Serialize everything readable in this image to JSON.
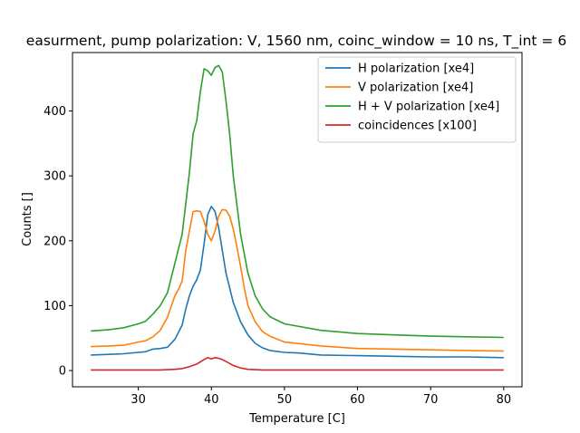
{
  "chart_data": {
    "type": "line",
    "title": "easurment, pump polarization: V, 1560 nm, coinc_window = 10 ns, T_int = 6",
    "xlabel": "Temperature [C]",
    "ylabel": "Counts []",
    "xlim": [
      21,
      82.5
    ],
    "ylim": [
      -25,
      490
    ],
    "xticks": [
      30,
      40,
      50,
      60,
      70,
      80
    ],
    "yticks": [
      0,
      100,
      200,
      300,
      400
    ],
    "grid": false,
    "legend_position": "top-right",
    "series": [
      {
        "name": "H polarization [xe4]",
        "color": "#1f77b4",
        "x": [
          23.5,
          26,
          28,
          30,
          31,
          32,
          33,
          34,
          35,
          36,
          36.5,
          37,
          37.5,
          38,
          38.5,
          39,
          39.5,
          40,
          40.5,
          41,
          41.5,
          42,
          43,
          44,
          45,
          46,
          47,
          48,
          50,
          52,
          55,
          60,
          65,
          70,
          75,
          80
        ],
        "y": [
          24,
          25,
          26,
          28,
          29,
          33,
          34,
          36,
          48,
          70,
          95,
          115,
          130,
          140,
          155,
          195,
          240,
          253,
          245,
          220,
          185,
          150,
          105,
          75,
          55,
          42,
          35,
          31,
          28,
          27,
          24,
          23,
          22,
          21,
          21,
          20
        ]
      },
      {
        "name": "V polarization [xe4]",
        "color": "#ff7f0e",
        "x": [
          23.5,
          26,
          28,
          30,
          31,
          32,
          33,
          34,
          35,
          35.5,
          36,
          36.5,
          37,
          37.5,
          38,
          38.5,
          39,
          39.5,
          40,
          40.5,
          41,
          41.5,
          42,
          42.5,
          43,
          43.5,
          44,
          44.5,
          45,
          46,
          47,
          48,
          50,
          55,
          60,
          65,
          70,
          75,
          80
        ],
        "y": [
          37,
          38,
          39,
          44,
          46,
          52,
          62,
          82,
          115,
          125,
          138,
          185,
          215,
          245,
          246,
          245,
          230,
          210,
          200,
          215,
          238,
          248,
          247,
          238,
          218,
          190,
          160,
          128,
          100,
          75,
          60,
          53,
          44,
          38,
          34,
          33,
          32,
          31,
          30
        ]
      },
      {
        "name": "H + V polarization [xe4]",
        "color": "#2ca02c",
        "x": [
          23.5,
          26,
          28,
          30,
          31,
          32,
          33,
          34,
          35,
          36,
          37,
          37.5,
          38,
          38.5,
          39,
          39.5,
          40,
          40.5,
          41,
          41.5,
          42,
          42.5,
          43,
          44,
          45,
          46,
          47,
          48,
          50,
          55,
          60,
          65,
          70,
          75,
          80
        ],
        "y": [
          61,
          63,
          66,
          72,
          76,
          87,
          100,
          120,
          165,
          210,
          305,
          365,
          385,
          430,
          465,
          462,
          455,
          467,
          470,
          460,
          415,
          365,
          300,
          210,
          150,
          115,
          95,
          83,
          72,
          62,
          57,
          55,
          53,
          52,
          51
        ]
      },
      {
        "name": "coincidences [x100]",
        "color": "#d62728",
        "x": [
          23.5,
          30,
          33,
          35,
          36,
          37,
          38,
          39,
          39.5,
          40,
          40.5,
          41,
          41.5,
          42,
          43,
          44,
          45,
          47,
          50,
          60,
          70,
          80
        ],
        "y": [
          1,
          1,
          1,
          2,
          3,
          6,
          10,
          17,
          20,
          18,
          20,
          19,
          17,
          14,
          8,
          4,
          2,
          1,
          1,
          1,
          1,
          1
        ]
      }
    ]
  }
}
